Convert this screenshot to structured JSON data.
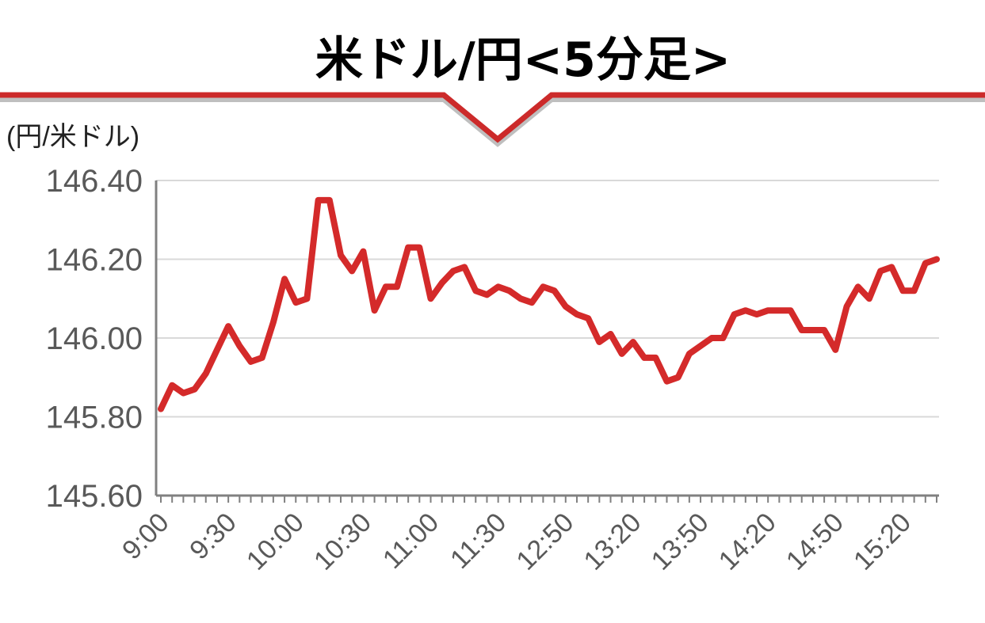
{
  "chart_data": {
    "type": "line",
    "title": "米ドル/円<5分足>",
    "ylabel": "(円/米ドル)",
    "xlabel": "",
    "ylim": [
      145.6,
      146.4
    ],
    "yticks": [
      "146.40",
      "146.20",
      "146.00",
      "145.80",
      "145.60"
    ],
    "ytick_values": [
      146.4,
      146.2,
      146.0,
      145.8,
      145.6
    ],
    "x_tick_labels": [
      {
        "index": 0,
        "label": "9:00"
      },
      {
        "index": 6,
        "label": "9:30"
      },
      {
        "index": 12,
        "label": "10:00"
      },
      {
        "index": 18,
        "label": "10:30"
      },
      {
        "index": 24,
        "label": "11:00"
      },
      {
        "index": 30,
        "label": "11:30"
      },
      {
        "index": 36,
        "label": "12:50"
      },
      {
        "index": 42,
        "label": "13:20"
      },
      {
        "index": 48,
        "label": "13:50"
      },
      {
        "index": 54,
        "label": "14:20"
      },
      {
        "index": 60,
        "label": "14:50"
      },
      {
        "index": 66,
        "label": "15:20"
      }
    ],
    "grid": true,
    "legend": "none",
    "series": [
      {
        "color": "#d42a2a",
        "values": [
          145.82,
          145.88,
          145.86,
          145.87,
          145.91,
          145.97,
          146.03,
          145.98,
          145.94,
          145.95,
          146.04,
          146.15,
          146.09,
          146.1,
          146.35,
          146.35,
          146.21,
          146.17,
          146.22,
          146.07,
          146.13,
          146.13,
          146.23,
          146.23,
          146.1,
          146.14,
          146.17,
          146.18,
          146.12,
          146.11,
          146.13,
          146.12,
          146.1,
          146.09,
          146.13,
          146.12,
          146.08,
          146.06,
          146.05,
          145.99,
          146.01,
          145.96,
          145.99,
          145.95,
          145.95,
          145.89,
          145.9,
          145.96,
          145.98,
          146.0,
          146.0,
          146.06,
          146.07,
          146.06,
          146.07,
          146.07,
          146.07,
          146.02,
          146.02,
          146.02,
          145.97,
          146.08,
          146.13,
          146.1,
          146.17,
          146.18,
          146.12,
          146.12,
          146.19,
          146.2
        ]
      }
    ]
  },
  "colors": {
    "accent": "#cc2a2a",
    "grid": "#d9d9d9",
    "axis": "#808080"
  }
}
